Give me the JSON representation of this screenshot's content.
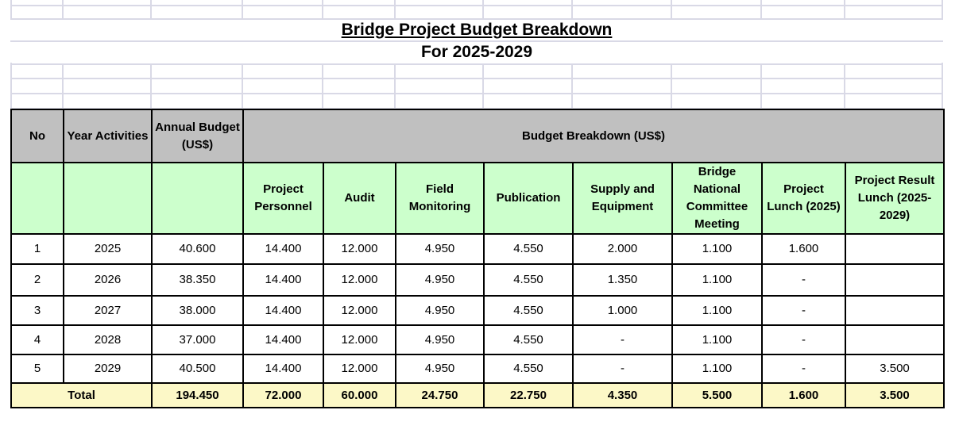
{
  "title": "Bridge Project Budget Breakdown",
  "subtitle": "For 2025-2029",
  "table": {
    "header_no": "No",
    "header_year": "Year Activities",
    "header_annual": "Annual Budget (US$)",
    "header_breakdown": "Budget Breakdown (US$)",
    "sub_headers": [
      "Project Personnel",
      "Audit",
      "Field Monitoring",
      "Publication",
      "Supply and Equipment",
      "Bridge National Committee Meeting",
      "Project Lunch (2025)",
      "Project Result Lunch (2025-2029)"
    ],
    "rows": [
      {
        "no": "1",
        "year": "2025",
        "annual": "40.600",
        "cells": [
          "14.400",
          "12.000",
          "4.950",
          "4.550",
          "2.000",
          "1.100",
          "1.600",
          ""
        ]
      },
      {
        "no": "2",
        "year": "2026",
        "annual": "38.350",
        "cells": [
          "14.400",
          "12.000",
          "4.950",
          "4.550",
          "1.350",
          "1.100",
          "-",
          ""
        ]
      },
      {
        "no": "3",
        "year": "2027",
        "annual": "38.000",
        "cells": [
          "14.400",
          "12.000",
          "4.950",
          "4.550",
          "1.000",
          "1.100",
          "-",
          ""
        ]
      },
      {
        "no": "4",
        "year": "2028",
        "annual": "37.000",
        "cells": [
          "14.400",
          "12.000",
          "4.950",
          "4.550",
          "-",
          "1.100",
          "-",
          ""
        ]
      },
      {
        "no": "5",
        "year": "2029",
        "annual": "40.500",
        "cells": [
          "14.400",
          "12.000",
          "4.950",
          "4.550",
          "-",
          "1.100",
          "-",
          "3.500"
        ]
      }
    ],
    "total": {
      "label": "Total",
      "annual": "194.450",
      "cells": [
        "72.000",
        "60.000",
        "24.750",
        "22.750",
        "4.350",
        "5.500",
        "1.600",
        "3.500"
      ]
    }
  }
}
